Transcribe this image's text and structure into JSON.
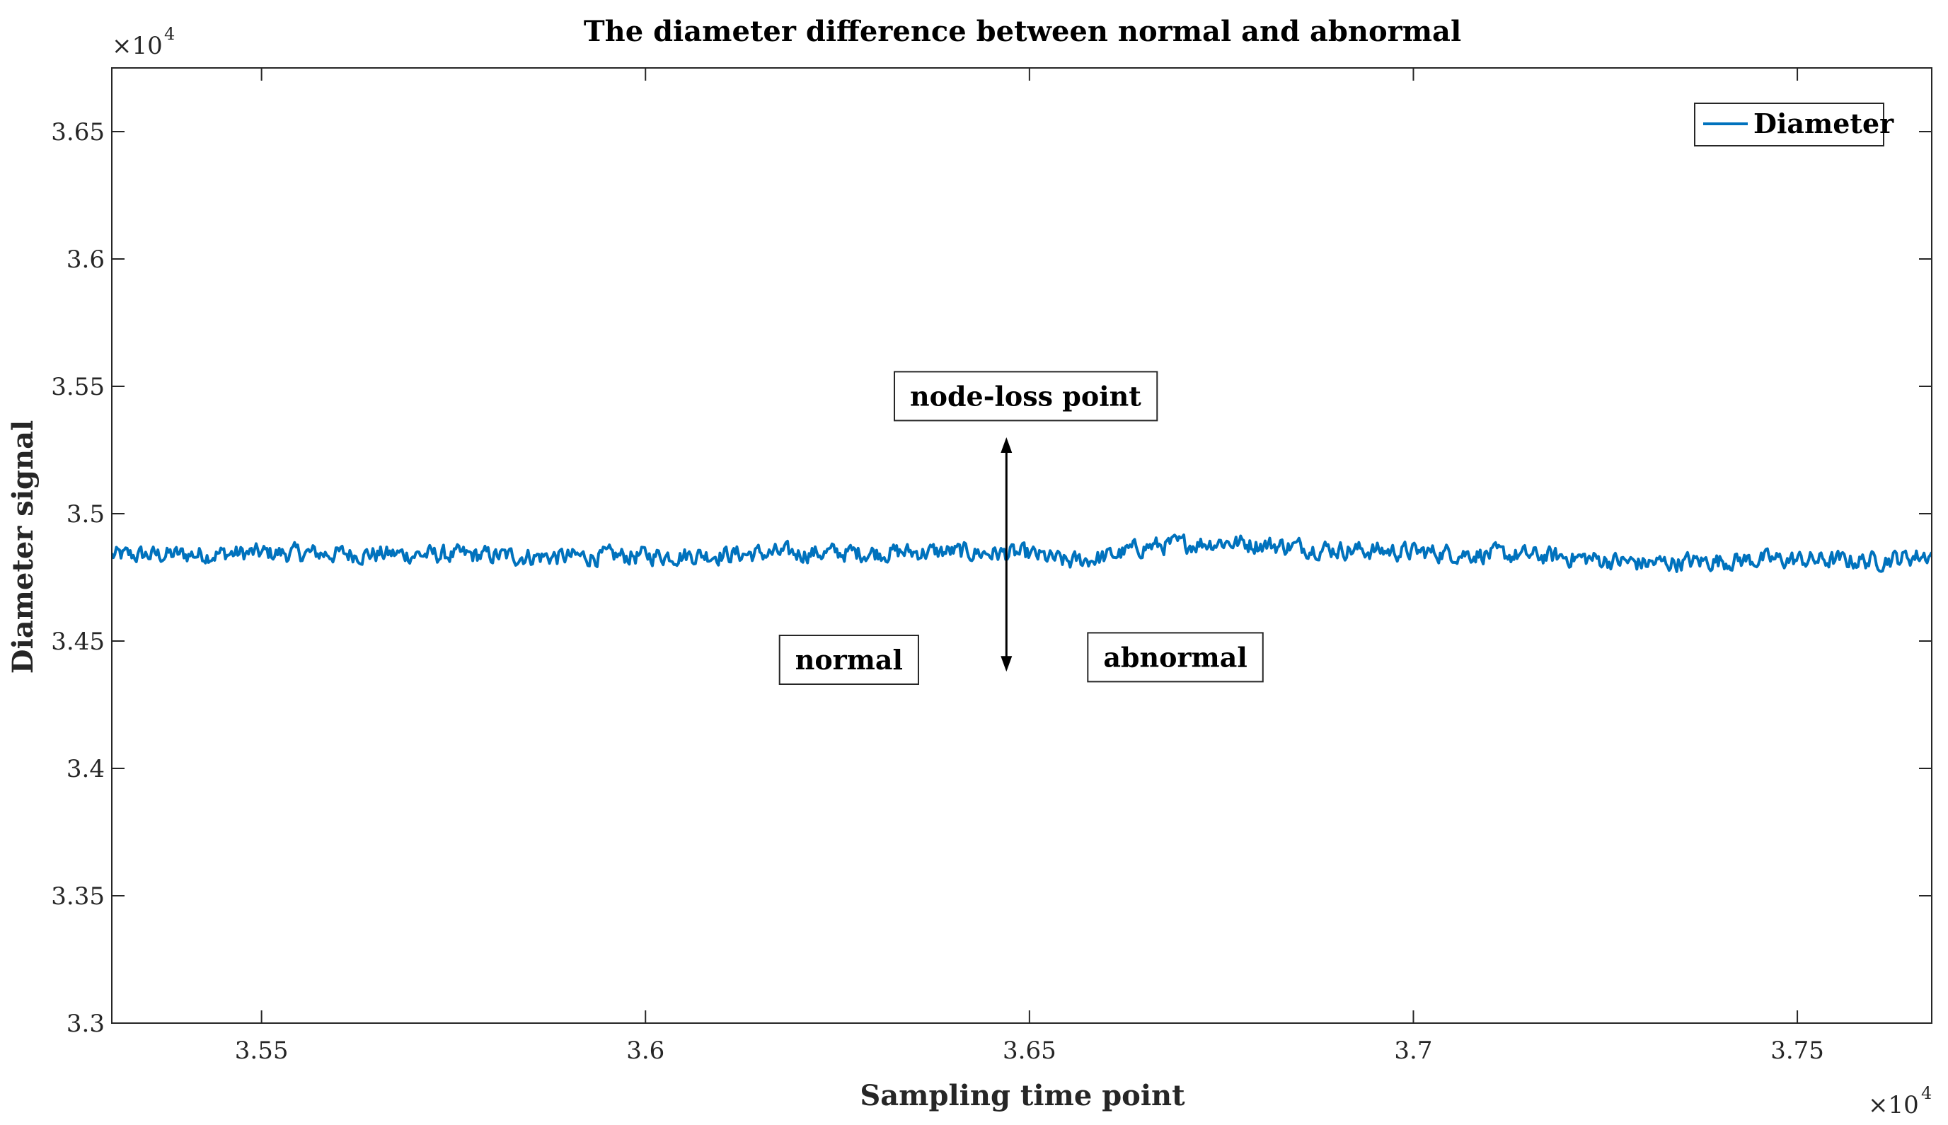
{
  "chart_data": {
    "type": "line",
    "title": "The diameter difference between normal and abnormal",
    "xlabel": "Sampling time point",
    "ylabel": "Diameter signal",
    "x_exponent_label": "×10",
    "x_exponent_power": "4",
    "y_exponent_label": "×10",
    "y_exponent_power": "4",
    "xlim": [
      35305,
      37675
    ],
    "ylim": [
      33000,
      36750
    ],
    "xticks": [
      35500,
      36000,
      36500,
      37000,
      37500
    ],
    "xtick_labels": [
      "3.55",
      "3.6",
      "3.65",
      "3.7",
      "3.75"
    ],
    "yticks": [
      33000,
      33500,
      34000,
      34500,
      35000,
      35500,
      36000,
      36500
    ],
    "ytick_labels": [
      "3.3",
      "3.35",
      "3.4",
      "3.45",
      "3.5",
      "3.55",
      "3.6",
      "3.65"
    ],
    "grid": false,
    "legend": {
      "position": "top-right",
      "entries": [
        "Diameter"
      ]
    },
    "series": [
      {
        "name": "Diameter",
        "color": "#0072BD",
        "x_start": 35305,
        "x_end": 37675,
        "baseline_points": [
          [
            35305,
            34835
          ],
          [
            35500,
            34845
          ],
          [
            35700,
            34840
          ],
          [
            35900,
            34830
          ],
          [
            36000,
            34835
          ],
          [
            36200,
            34845
          ],
          [
            36400,
            34850
          ],
          [
            36500,
            34840
          ],
          [
            36550,
            34810
          ],
          [
            36600,
            34830
          ],
          [
            36650,
            34870
          ],
          [
            36750,
            34890
          ],
          [
            36900,
            34860
          ],
          [
            37050,
            34845
          ],
          [
            37200,
            34830
          ],
          [
            37300,
            34805
          ],
          [
            37450,
            34820
          ],
          [
            37600,
            34815
          ],
          [
            37675,
            34840
          ]
        ],
        "noise_amplitude": 35
      }
    ],
    "annotations": [
      {
        "text": "node-loss point",
        "x": 36495,
        "y": 35460
      },
      {
        "text": "normal",
        "x": 36265,
        "y": 34425
      },
      {
        "text": "abnormal",
        "x": 36690,
        "y": 34435
      }
    ],
    "arrow": {
      "x": 36470,
      "y_from": 34380,
      "y_to": 35300,
      "label": "node-loss point"
    }
  }
}
